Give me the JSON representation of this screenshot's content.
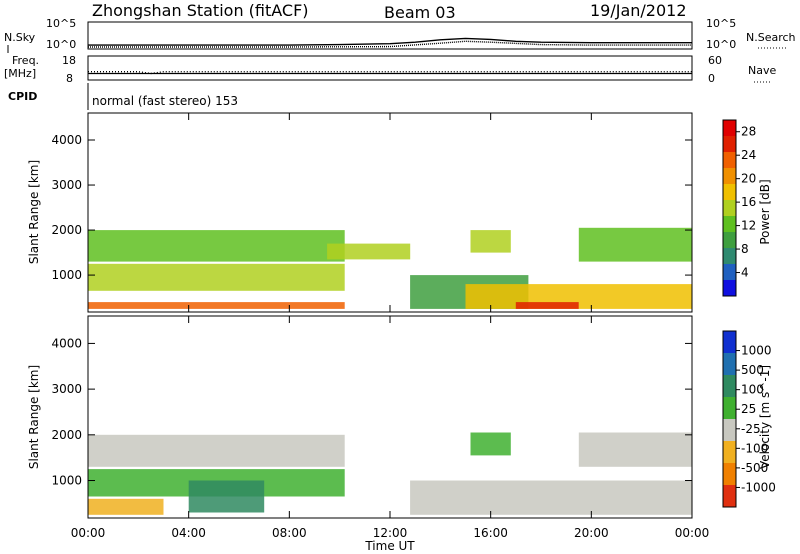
{
  "header": {
    "station": "Zhongshan Station (fitACF)",
    "beam": "Beam 03",
    "date": "19/Jan/2012"
  },
  "strip1": {
    "left_label": "N.Sky",
    "right_label": "N.Search",
    "left_ticks": [
      "10^5",
      "10^0"
    ],
    "right_ticks": [
      "10^5",
      "10^0"
    ],
    "left_range": [
      0,
      5
    ],
    "right_range": [
      0,
      5
    ],
    "series_nsky": [
      {
        "t": 0.0,
        "v": 0.6
      },
      {
        "t": 2.0,
        "v": 0.6
      },
      {
        "t": 4.0,
        "v": 0.6
      },
      {
        "t": 6.0,
        "v": 0.6
      },
      {
        "t": 8.0,
        "v": 0.6
      },
      {
        "t": 10.0,
        "v": 0.7
      },
      {
        "t": 12.0,
        "v": 0.9
      },
      {
        "t": 13.0,
        "v": 1.2
      },
      {
        "t": 14.0,
        "v": 1.7
      },
      {
        "t": 15.0,
        "v": 2.0
      },
      {
        "t": 16.0,
        "v": 1.8
      },
      {
        "t": 17.0,
        "v": 1.4
      },
      {
        "t": 18.0,
        "v": 1.2
      },
      {
        "t": 20.0,
        "v": 1.1
      },
      {
        "t": 22.0,
        "v": 1.1
      },
      {
        "t": 24.0,
        "v": 1.1
      }
    ],
    "series_nsearch": [
      {
        "t": 0.0,
        "v": 0.2
      },
      {
        "t": 4.0,
        "v": 0.2
      },
      {
        "t": 8.0,
        "v": 0.2
      },
      {
        "t": 12.0,
        "v": 0.3
      },
      {
        "t": 14.0,
        "v": 1.0
      },
      {
        "t": 15.0,
        "v": 1.4
      },
      {
        "t": 16.0,
        "v": 1.2
      },
      {
        "t": 18.0,
        "v": 0.7
      },
      {
        "t": 20.0,
        "v": 0.6
      },
      {
        "t": 24.0,
        "v": 0.6
      }
    ]
  },
  "strip2": {
    "left_label_line1": "Freq.",
    "left_label_line2": "[MHz]",
    "right_label": "Nave",
    "left_ticks": [
      "18",
      "8"
    ],
    "right_ticks": [
      "60",
      "0"
    ],
    "left_range": [
      8,
      18
    ],
    "right_range": [
      0,
      60
    ],
    "freq_mhz": 10.5,
    "nave": [
      {
        "t": 0.0,
        "v": 20
      },
      {
        "t": 2.0,
        "v": 20
      },
      {
        "t": 2.5,
        "v": 15
      },
      {
        "t": 3.0,
        "v": 20
      },
      {
        "t": 12.0,
        "v": 20
      },
      {
        "t": 24.0,
        "v": 20
      }
    ]
  },
  "cpid": {
    "label": "CPID",
    "text": "normal (fast stereo) 153"
  },
  "x_axis": {
    "ticks": [
      "00:00",
      "04:00",
      "08:00",
      "12:00",
      "16:00",
      "20:00",
      "00:00"
    ],
    "label": "Time UT",
    "range_hours": [
      0,
      24
    ]
  },
  "chart_data": [
    {
      "type": "heatmap",
      "ylabel": "Slant Range [km]",
      "yticks": [
        "1000",
        "2000",
        "3000",
        "4000"
      ],
      "ylim": [
        180,
        4600
      ],
      "colorbar_label": "Power [dB]",
      "colorbar_ticks": [
        "4",
        "8",
        "12",
        "16",
        "20",
        "24",
        "28"
      ],
      "colorbar_range": [
        0,
        30
      ],
      "colorscale": [
        "#1010e0",
        "#2060c0",
        "#2f8a70",
        "#3f9f3f",
        "#5fc020",
        "#b0d020",
        "#f0c000",
        "#f09000",
        "#f06000",
        "#e02000",
        "#e00000"
      ],
      "echo_bands": [
        {
          "t0": 0.0,
          "t1": 10.2,
          "r0": 1300,
          "r1": 2000,
          "level": 12
        },
        {
          "t0": 0.0,
          "t1": 10.2,
          "r0": 650,
          "r1": 1250,
          "level": 16
        },
        {
          "t0": 0.0,
          "t1": 10.2,
          "r0": 250,
          "r1": 400,
          "level": 22
        },
        {
          "t0": 9.5,
          "t1": 12.8,
          "r0": 1350,
          "r1": 1700,
          "level": 16
        },
        {
          "t0": 12.8,
          "t1": 17.5,
          "r0": 250,
          "r1": 1000,
          "level": 10
        },
        {
          "t0": 15.0,
          "t1": 24.0,
          "r0": 250,
          "r1": 800,
          "level": 18
        },
        {
          "t0": 17.0,
          "t1": 19.5,
          "r0": 250,
          "r1": 400,
          "level": 27
        },
        {
          "t0": 19.5,
          "t1": 24.0,
          "r0": 1300,
          "r1": 2050,
          "level": 12
        },
        {
          "t0": 15.2,
          "t1": 16.8,
          "r0": 1500,
          "r1": 2000,
          "level": 14
        }
      ]
    },
    {
      "type": "heatmap",
      "ylabel": "Slant Range [km]",
      "yticks": [
        "1000",
        "2000",
        "3000",
        "4000"
      ],
      "ylim": [
        180,
        4600
      ],
      "colorbar_label": "Velocity [m s^-1]",
      "colorbar_ticks": [
        "1000",
        "500",
        "100",
        "25",
        "-25",
        "-100",
        "-500",
        "-1000"
      ],
      "colorbar_range": [
        -1200,
        1200
      ],
      "colorscale": [
        "#1030d0",
        "#2070b0",
        "#2f8a60",
        "#40b030",
        "#c8c8c0",
        "#f0b020",
        "#f08000",
        "#e03010"
      ],
      "echo_bands": [
        {
          "t0": 0.0,
          "t1": 10.2,
          "r0": 1300,
          "r1": 2000,
          "level": 0
        },
        {
          "t0": 0.0,
          "t1": 10.2,
          "r0": 650,
          "r1": 1250,
          "level": -200
        },
        {
          "t0": 4.0,
          "t1": 7.0,
          "r0": 300,
          "r1": 1000,
          "level": -400
        },
        {
          "t0": 0.0,
          "t1": 3.0,
          "r0": 250,
          "r1": 600,
          "level": 300
        },
        {
          "t0": 12.8,
          "t1": 24.0,
          "r0": 250,
          "r1": 1000,
          "level": 150
        },
        {
          "t0": 15.2,
          "t1": 16.8,
          "r0": 1550,
          "r1": 2050,
          "level": -300
        },
        {
          "t0": 19.5,
          "t1": 24.0,
          "r0": 1300,
          "r1": 2050,
          "level": 0
        }
      ]
    }
  ]
}
